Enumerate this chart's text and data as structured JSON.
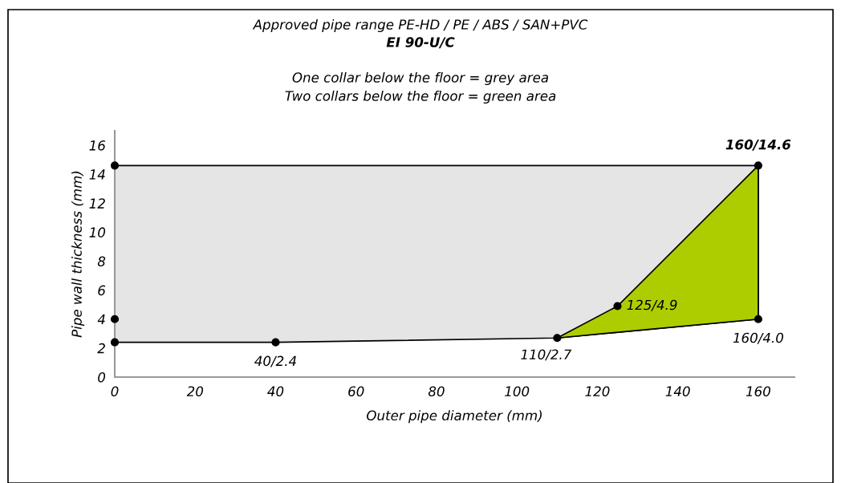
{
  "chart_data": {
    "type": "area",
    "title": "Approved pipe range PE-HD / PE / ABS / SAN+PVC",
    "subtitle": "EI 90-U/C",
    "xlabel": "Outer pipe diameter (mm)",
    "ylabel": "Pipe wall thickness (mm)",
    "series": [
      {
        "color": "#e5e5e5",
        "x": [
          0,
          40,
          110,
          160,
          160,
          0
        ],
        "values": [
          2.4,
          2.4,
          2.7,
          4.0,
          14.6,
          14.6
        ]
      },
      {
        "color": "#aecd00",
        "x": [
          110,
          125,
          160,
          160
        ],
        "values": [
          2.7,
          4.9,
          14.6,
          4.0
        ]
      },
      {
        "type": "scatter",
        "color": "#000000",
        "marker": "circle",
        "x": [
          0,
          0,
          0,
          40,
          110,
          125,
          160,
          160
        ],
        "values": [
          14.6,
          4.0,
          2.4,
          2.4,
          2.7,
          4.9,
          4.0,
          14.6
        ]
      }
    ],
    "annotations": [
      "One collar below the floor = grey area",
      "Two collars below the floor = green area",
      {
        "text": "160/14.6",
        "x": 160,
        "y": 14.6
      },
      {
        "text": "125/4.9",
        "x": 125,
        "y": 4.9
      },
      {
        "text": "160/4.0",
        "x": 160,
        "y": 4.0
      },
      {
        "text": "110/2.7",
        "x": 110,
        "y": 2.7
      },
      {
        "text": "40/2.4",
        "x": 40,
        "y": 2.4
      }
    ],
    "xlim": [
      0,
      169
    ],
    "xticks": [
      0,
      20,
      40,
      60,
      80,
      100,
      120,
      140,
      160
    ],
    "ylim": [
      0,
      17
    ],
    "yticks": [
      0,
      2,
      4,
      6,
      8,
      10,
      12,
      14,
      16
    ],
    "grid": false,
    "legend": false
  }
}
